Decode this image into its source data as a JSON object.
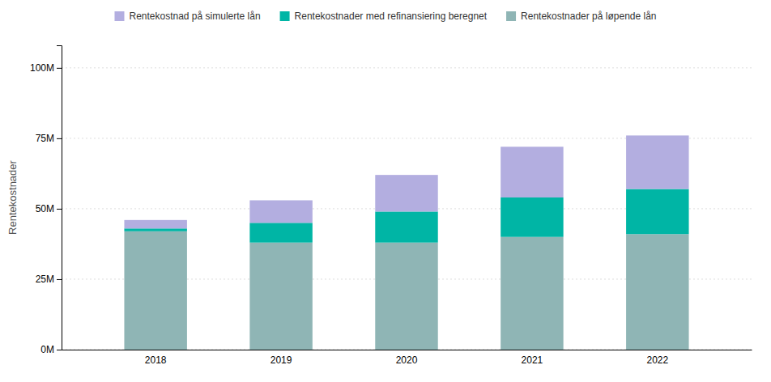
{
  "chart_data": {
    "type": "bar",
    "stacked": true,
    "categories": [
      "2018",
      "2019",
      "2020",
      "2021",
      "2022"
    ],
    "series": [
      {
        "name": "Rentekostnader på løpende lån",
        "color": "#8fb5b5",
        "values": [
          42,
          38,
          38,
          40,
          41
        ]
      },
      {
        "name": "Rentekostnader med refinansiering beregnet",
        "color": "#00b5a5",
        "values": [
          1,
          7,
          11,
          14,
          16
        ]
      },
      {
        "name": "Rentekostnad på simulerte lån",
        "color": "#b3aee0",
        "values": [
          3,
          8,
          13,
          18,
          19
        ]
      }
    ],
    "y_label": "Rentekostnader",
    "ylim": [
      0,
      108
    ],
    "yticks": [
      {
        "value": 0,
        "label": "0M"
      },
      {
        "value": 25,
        "label": "25M"
      },
      {
        "value": 50,
        "label": "50M"
      },
      {
        "value": 75,
        "label": "75M"
      },
      {
        "value": 100,
        "label": "100M"
      }
    ],
    "grid": true,
    "legend": "top"
  }
}
